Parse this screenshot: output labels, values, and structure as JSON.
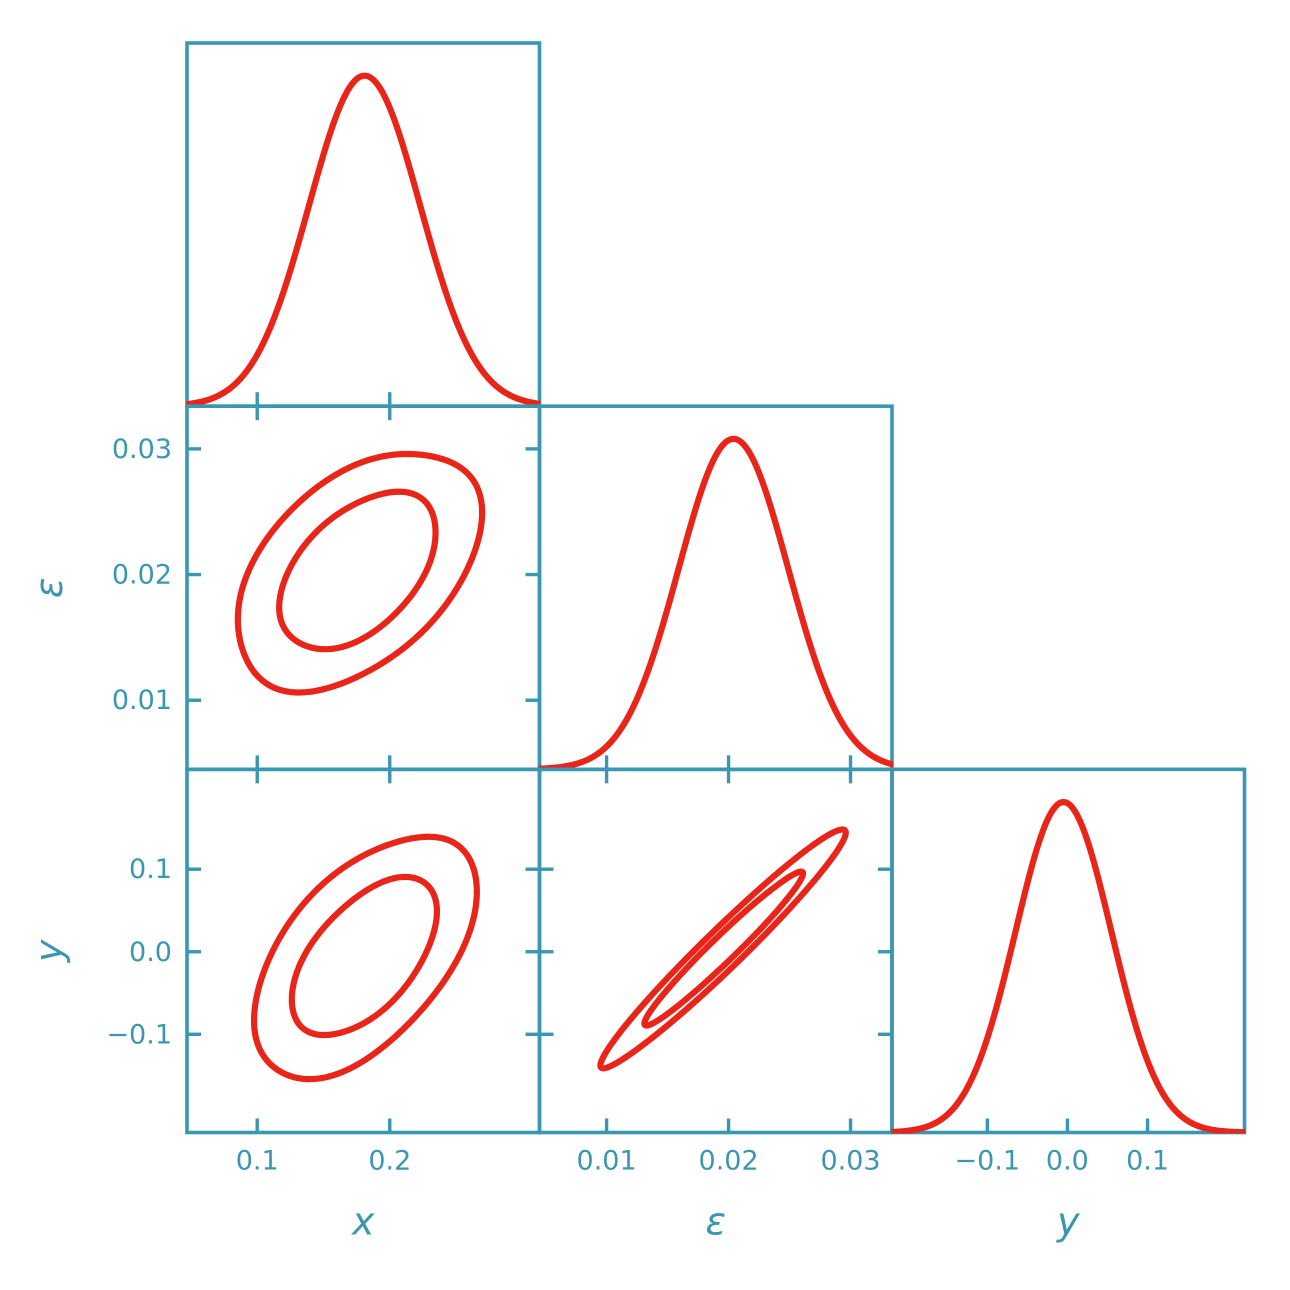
{
  "chart_data": {
    "type": "scatter",
    "plot_kind": "corner-plot-triangle",
    "title": "",
    "grid": false,
    "legend": "none",
    "tick_style": "inward-all-sides",
    "parameters": [
      {
        "id": "x",
        "label": "x",
        "lim": [
          0.047,
          0.313
        ],
        "ticks": [
          0.1,
          0.2
        ],
        "tick_labels": [
          "0.1",
          "0.2"
        ],
        "density_1d": {
          "mean": 0.181,
          "sigma": 0.042,
          "peak_fraction": 0.91
        }
      },
      {
        "id": "epsilon",
        "label": "ε",
        "lim": [
          0.0045,
          0.0334
        ],
        "ticks": [
          0.01,
          0.02,
          0.03
        ],
        "tick_labels": [
          "0.01",
          "0.02",
          "0.03"
        ],
        "density_1d": {
          "mean": 0.0204,
          "sigma": 0.0045,
          "peak_fraction": 0.91
        }
      },
      {
        "id": "y",
        "label": "y",
        "lim": [
          -0.219,
          0.221
        ],
        "ticks": [
          -0.1,
          0.0,
          0.1
        ],
        "tick_labels": [
          "−0.1",
          "0.0",
          "0.1"
        ],
        "density_1d": {
          "mean": -0.005,
          "sigma": 0.06,
          "peak_fraction": 0.91
        }
      }
    ],
    "contours_2d": [
      {
        "x": "x",
        "y": "epsilon",
        "center": [
          0.176,
          0.0203
        ],
        "sigma": [
          0.041,
          0.0044
        ],
        "rho": 0.45,
        "level_radii_sigma": [
          1.42,
          2.2
        ]
      },
      {
        "x": "x",
        "y": "y",
        "center": [
          0.181,
          -0.006
        ],
        "sigma": [
          0.038,
          0.068
        ],
        "rho": 0.55,
        "level_radii_sigma": [
          1.42,
          2.2
        ]
      },
      {
        "x": "epsilon",
        "y": "y",
        "center": [
          0.0196,
          0.004
        ],
        "sigma": [
          0.0046,
          0.066
        ],
        "rho": 0.975,
        "level_radii_sigma": [
          1.42,
          2.2
        ]
      }
    ],
    "style": {
      "curve_color": "#e92519",
      "axis_color": "#3a97b1",
      "background": "#ffffff"
    }
  }
}
